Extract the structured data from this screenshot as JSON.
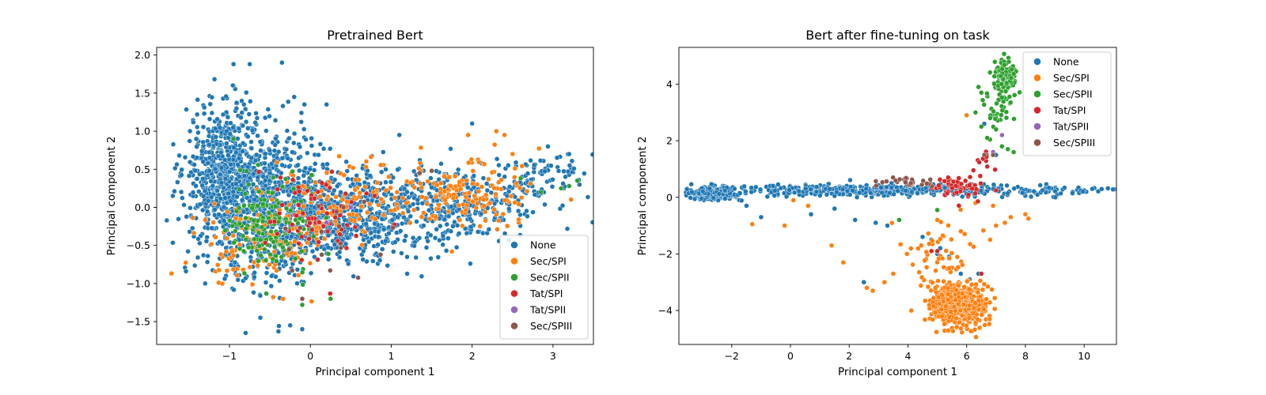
{
  "colors": {
    "None": "#1f77b4",
    "Sec/SPI": "#ff7f0e",
    "Sec/SPII": "#2ca02c",
    "Tat/SPI": "#d62728",
    "Tat/SPII": "#9467bd",
    "Sec/SPIII": "#8c564b"
  },
  "chart_data": [
    {
      "type": "scatter",
      "title": "Pretrained Bert",
      "xlabel": "Principal component 1",
      "ylabel": "Principal component 2",
      "xlim": [
        -1.9,
        3.5
      ],
      "ylim": [
        -1.8,
        2.1
      ],
      "xticks": [
        -1,
        0,
        1,
        2,
        3
      ],
      "yticks": [
        -1.5,
        -1.0,
        -0.5,
        0.0,
        0.5,
        1.0,
        1.5,
        2.0
      ],
      "xtick_labels": [
        "−1",
        "0",
        "1",
        "2",
        "3"
      ],
      "ytick_labels": [
        "−1.5",
        "−1.0",
        "−0.5",
        "0.0",
        "0.5",
        "1.0",
        "1.5",
        "2.0"
      ],
      "legend": {
        "location": "lower-right",
        "entries": [
          "None",
          "Sec/SPI",
          "Sec/SPII",
          "Tat/SPI",
          "Tat/SPII",
          "Sec/SPIII"
        ]
      },
      "series": [
        {
          "name": "None",
          "n": 2200,
          "clusters": [
            {
              "cx": -1.05,
              "cy": 0.45,
              "sx": 0.25,
              "sy": 0.45,
              "w": 0.28
            },
            {
              "cx": -0.5,
              "cy": 0.05,
              "sx": 0.4,
              "sy": 0.5,
              "w": 0.32
            },
            {
              "cx": 0.6,
              "cy": -0.1,
              "sx": 0.55,
              "sy": 0.3,
              "w": 0.25
            },
            {
              "cx": 1.9,
              "cy": 0.05,
              "sx": 0.55,
              "sy": 0.22,
              "w": 0.12
            },
            {
              "cx": 2.9,
              "cy": 0.45,
              "sx": 0.25,
              "sy": 0.15,
              "w": 0.03
            }
          ],
          "points": [
            [
              -0.95,
              1.88
            ],
            [
              -0.75,
              1.88
            ],
            [
              -0.35,
              1.9
            ],
            [
              -0.2,
              1.45
            ],
            [
              -0.8,
              -1.65
            ],
            [
              -0.25,
              -1.55
            ],
            [
              -0.1,
              -1.6
            ],
            [
              -1.62,
              0.68
            ],
            [
              -1.7,
              0.15
            ],
            [
              3.2,
              0.7
            ],
            [
              3.05,
              0.65
            ],
            [
              2.0,
              1.1
            ],
            [
              1.1,
              0.95
            ],
            [
              0.2,
              1.35
            ],
            [
              -1.3,
              -1.0
            ]
          ]
        },
        {
          "name": "Sec/SPI",
          "n": 380,
          "clusters": [
            {
              "cx": -0.6,
              "cy": -0.45,
              "sx": 0.4,
              "sy": 0.3,
              "w": 0.35
            },
            {
              "cx": 0.4,
              "cy": 0.1,
              "sx": 0.4,
              "sy": 0.25,
              "w": 0.25
            },
            {
              "cx": 1.9,
              "cy": 0.2,
              "sx": 0.45,
              "sy": 0.25,
              "w": 0.4
            }
          ],
          "points": [
            [
              2.3,
              1.0
            ],
            [
              2.4,
              0.95
            ],
            [
              1.95,
              0.95
            ],
            [
              1.75,
              -0.58
            ],
            [
              2.5,
              0.7
            ],
            [
              0.4,
              0.1
            ]
          ]
        },
        {
          "name": "Sec/SPII",
          "n": 160,
          "clusters": [
            {
              "cx": -0.45,
              "cy": -0.25,
              "sx": 0.25,
              "sy": 0.3,
              "w": 1.0
            }
          ],
          "points": [
            [
              3.3,
              0.35
            ],
            [
              3.2,
              0.28
            ],
            [
              3.1,
              0.25
            ],
            [
              2.85,
              0.2
            ],
            [
              2.6,
              0.38
            ],
            [
              0.25,
              -1.2
            ],
            [
              -0.1,
              -1.28
            ],
            [
              -0.95,
              0.9
            ]
          ]
        },
        {
          "name": "Tat/SPI",
          "n": 70,
          "clusters": [
            {
              "cx": 0.1,
              "cy": -0.1,
              "sx": 0.35,
              "sy": 0.3,
              "w": 1.0
            }
          ],
          "points": []
        },
        {
          "name": "Tat/SPII",
          "n": 3,
          "clusters": [],
          "points": [
            [
              0.2,
              -0.2
            ],
            [
              -0.3,
              -0.3
            ],
            [
              0.5,
              0.0
            ]
          ]
        },
        {
          "name": "Sec/SPIII",
          "n": 18,
          "clusters": [
            {
              "cx": 0.3,
              "cy": -0.45,
              "sx": 0.45,
              "sy": 0.3,
              "w": 1.0
            }
          ],
          "points": [
            [
              -0.1,
              -1.2
            ],
            [
              1.5,
              0.48
            ],
            [
              1.35,
              0.45
            ]
          ]
        }
      ]
    },
    {
      "type": "scatter",
      "title": "Bert after fine-tuning on task",
      "xlabel": "Principal component 1",
      "ylabel": "Principal component 2",
      "xlim": [
        -3.8,
        11.1
      ],
      "ylim": [
        -5.2,
        5.3
      ],
      "xticks": [
        -2,
        0,
        2,
        4,
        6,
        8,
        10
      ],
      "yticks": [
        -4,
        -2,
        0,
        2,
        4
      ],
      "xtick_labels": [
        "−2",
        "0",
        "2",
        "4",
        "6",
        "8",
        "10"
      ],
      "ytick_labels": [
        "−4",
        "−2",
        "0",
        "2",
        "4"
      ],
      "legend": {
        "location": "upper-right",
        "entries": [
          "None",
          "Sec/SPI",
          "Sec/SPII",
          "Tat/SPI",
          "Tat/SPII",
          "Sec/SPIII"
        ]
      },
      "series": [
        {
          "name": "None",
          "n": 900,
          "clusters": [
            {
              "cx": -2.6,
              "cy": 0.15,
              "sx": 0.35,
              "sy": 0.1,
              "w": 0.45
            },
            {
              "cx": 3.5,
              "cy": 0.25,
              "sx": 3.3,
              "sy": 0.1,
              "w": 0.55
            }
          ],
          "points": [
            [
              -1.0,
              -0.7
            ],
            [
              -1.5,
              -0.3
            ],
            [
              0.7,
              -0.6
            ],
            [
              1.5,
              -0.4
            ],
            [
              2.2,
              -0.8
            ],
            [
              2.9,
              -0.9
            ],
            [
              3.3,
              -1.0
            ],
            [
              4.5,
              -1.4
            ],
            [
              5.0,
              -2.0
            ],
            [
              5.4,
              -2.1
            ],
            [
              5.8,
              -2.7
            ],
            [
              6.1,
              -2.9
            ],
            [
              6.4,
              -2.7
            ],
            [
              2.5,
              -3.0
            ],
            [
              5.1,
              -1.8
            ],
            [
              4.8,
              -1.5
            ],
            [
              7.0,
              1.5
            ],
            [
              6.6,
              2.6
            ]
          ]
        },
        {
          "name": "Sec/SPI",
          "n": 560,
          "clusters": [
            {
              "cx": 5.7,
              "cy": -3.8,
              "sx": 0.45,
              "sy": 0.4,
              "w": 0.9
            },
            {
              "cx": 5.0,
              "cy": -2.2,
              "sx": 0.7,
              "sy": 0.7,
              "w": 0.1
            }
          ],
          "points": [
            [
              -1.3,
              -0.95
            ],
            [
              -0.2,
              -1.0
            ],
            [
              0.1,
              -0.1
            ],
            [
              0.6,
              -0.3
            ],
            [
              1.4,
              -1.7
            ],
            [
              1.8,
              -2.3
            ],
            [
              2.6,
              -3.2
            ],
            [
              2.8,
              -3.3
            ],
            [
              3.5,
              -2.7
            ],
            [
              3.2,
              -3.0
            ],
            [
              7.0,
              -1.0
            ],
            [
              7.3,
              -0.9
            ],
            [
              7.5,
              -0.7
            ],
            [
              8.0,
              -0.6
            ],
            [
              8.1,
              -0.75
            ],
            [
              5.0,
              -0.8
            ],
            [
              6.3,
              -0.2
            ],
            [
              6.8,
              -1.5
            ],
            [
              6.9,
              -0.3
            ],
            [
              6.0,
              2.9
            ],
            [
              5.8,
              -1.2
            ]
          ]
        },
        {
          "name": "Sec/SPII",
          "n": 150,
          "clusters": [
            {
              "cx": 7.3,
              "cy": 4.25,
              "sx": 0.18,
              "sy": 0.3,
              "w": 0.75
            },
            {
              "cx": 7.0,
              "cy": 3.2,
              "sx": 0.2,
              "sy": 0.45,
              "w": 0.25
            }
          ],
          "points": [
            [
              6.7,
              2.1
            ],
            [
              6.5,
              2.5
            ],
            [
              6.3,
              3.0
            ],
            [
              6.4,
              3.9
            ],
            [
              6.5,
              3.7
            ],
            [
              7.2,
              1.8
            ],
            [
              7.4,
              1.7
            ],
            [
              7.6,
              1.6
            ],
            [
              6.8,
              2.8
            ],
            [
              7.0,
              2.4
            ],
            [
              3.7,
              -0.8
            ],
            [
              5.0,
              -0.45
            ],
            [
              6.2,
              0.3
            ],
            [
              6.6,
              1.4
            ]
          ]
        },
        {
          "name": "Tat/SPI",
          "n": 65,
          "clusters": [
            {
              "cx": 5.8,
              "cy": 0.35,
              "sx": 0.4,
              "sy": 0.2,
              "w": 0.85
            },
            {
              "cx": 6.5,
              "cy": 1.3,
              "sx": 0.2,
              "sy": 0.3,
              "w": 0.15
            }
          ],
          "points": [
            [
              4.8,
              -1.9
            ],
            [
              5.0,
              -1.9
            ],
            [
              6.5,
              -2.7
            ]
          ]
        },
        {
          "name": "Tat/SPII",
          "n": 0,
          "clusters": [],
          "points": [
            [
              6.9,
              1.6
            ],
            [
              7.2,
              2.2
            ]
          ]
        },
        {
          "name": "Sec/SPIII",
          "n": 30,
          "clusters": [
            {
              "cx": 4.1,
              "cy": 0.55,
              "sx": 0.45,
              "sy": 0.08,
              "w": 1.0
            }
          ],
          "points": [
            [
              6.9,
              1.5
            ],
            [
              6.6,
              1.5
            ]
          ]
        }
      ]
    }
  ]
}
